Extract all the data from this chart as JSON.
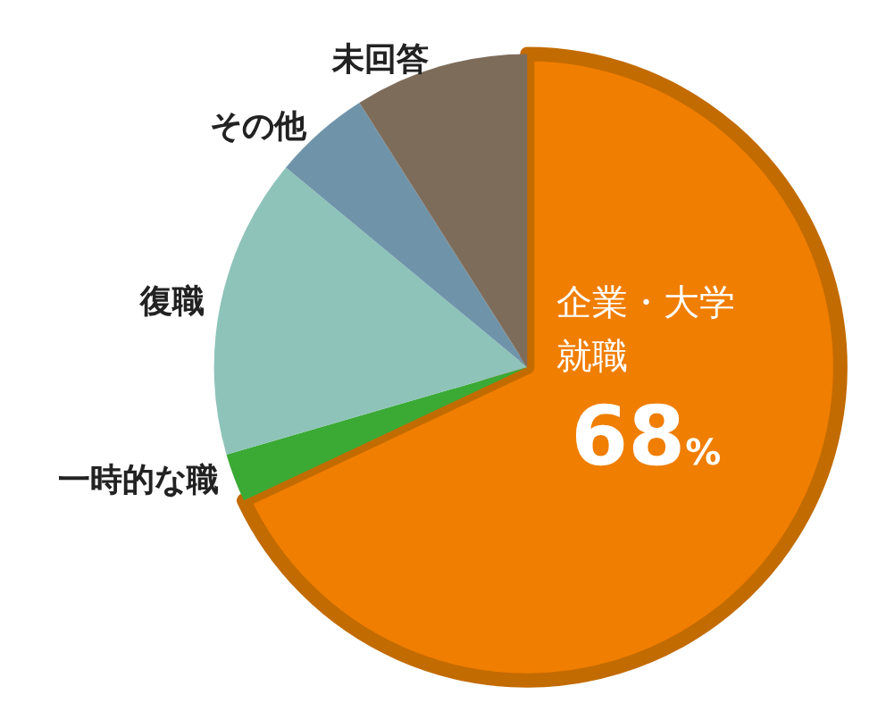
{
  "chart_data": {
    "type": "pie",
    "categories": [
      "企業・大学就職",
      "一時的な職",
      "復職",
      "その他",
      "未回答"
    ],
    "values": [
      68,
      2.5,
      15.5,
      5,
      9
    ],
    "colors": [
      "#f07e00",
      "#3aaa35",
      "#8ec3b9",
      "#6f94aa",
      "#7e6c5b"
    ],
    "value_labels": [
      "68%",
      null,
      null,
      null,
      null
    ],
    "legend": false
  }
}
